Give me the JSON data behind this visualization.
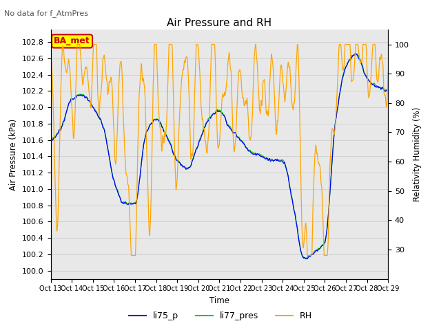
{
  "title": "Air Pressure and RH",
  "subtitle": "No data for f_AtmPres",
  "xlabel": "Time",
  "ylabel_left": "Air Pressure (kPa)",
  "ylabel_right": "Relativity Humidity (%)",
  "ylim_left": [
    99.9,
    102.95
  ],
  "ylim_right": [
    20,
    105
  ],
  "yticks_left": [
    100.0,
    100.2,
    100.4,
    100.6,
    100.8,
    101.0,
    101.2,
    101.4,
    101.6,
    101.8,
    102.0,
    102.2,
    102.4,
    102.6,
    102.8
  ],
  "yticks_right": [
    30,
    40,
    50,
    60,
    70,
    80,
    90,
    100
  ],
  "color_li75": "#0000ff",
  "color_li77": "#00cc00",
  "color_rh": "#ffa500",
  "legend_labels": [
    "li75_p",
    "li77_pres",
    "RH"
  ],
  "annotation_box": "BA_met",
  "annotation_box_color": "#ffff00",
  "annotation_box_border": "#cc0000",
  "grid_color": "#cccccc",
  "bg_color": "#e8e8e8"
}
